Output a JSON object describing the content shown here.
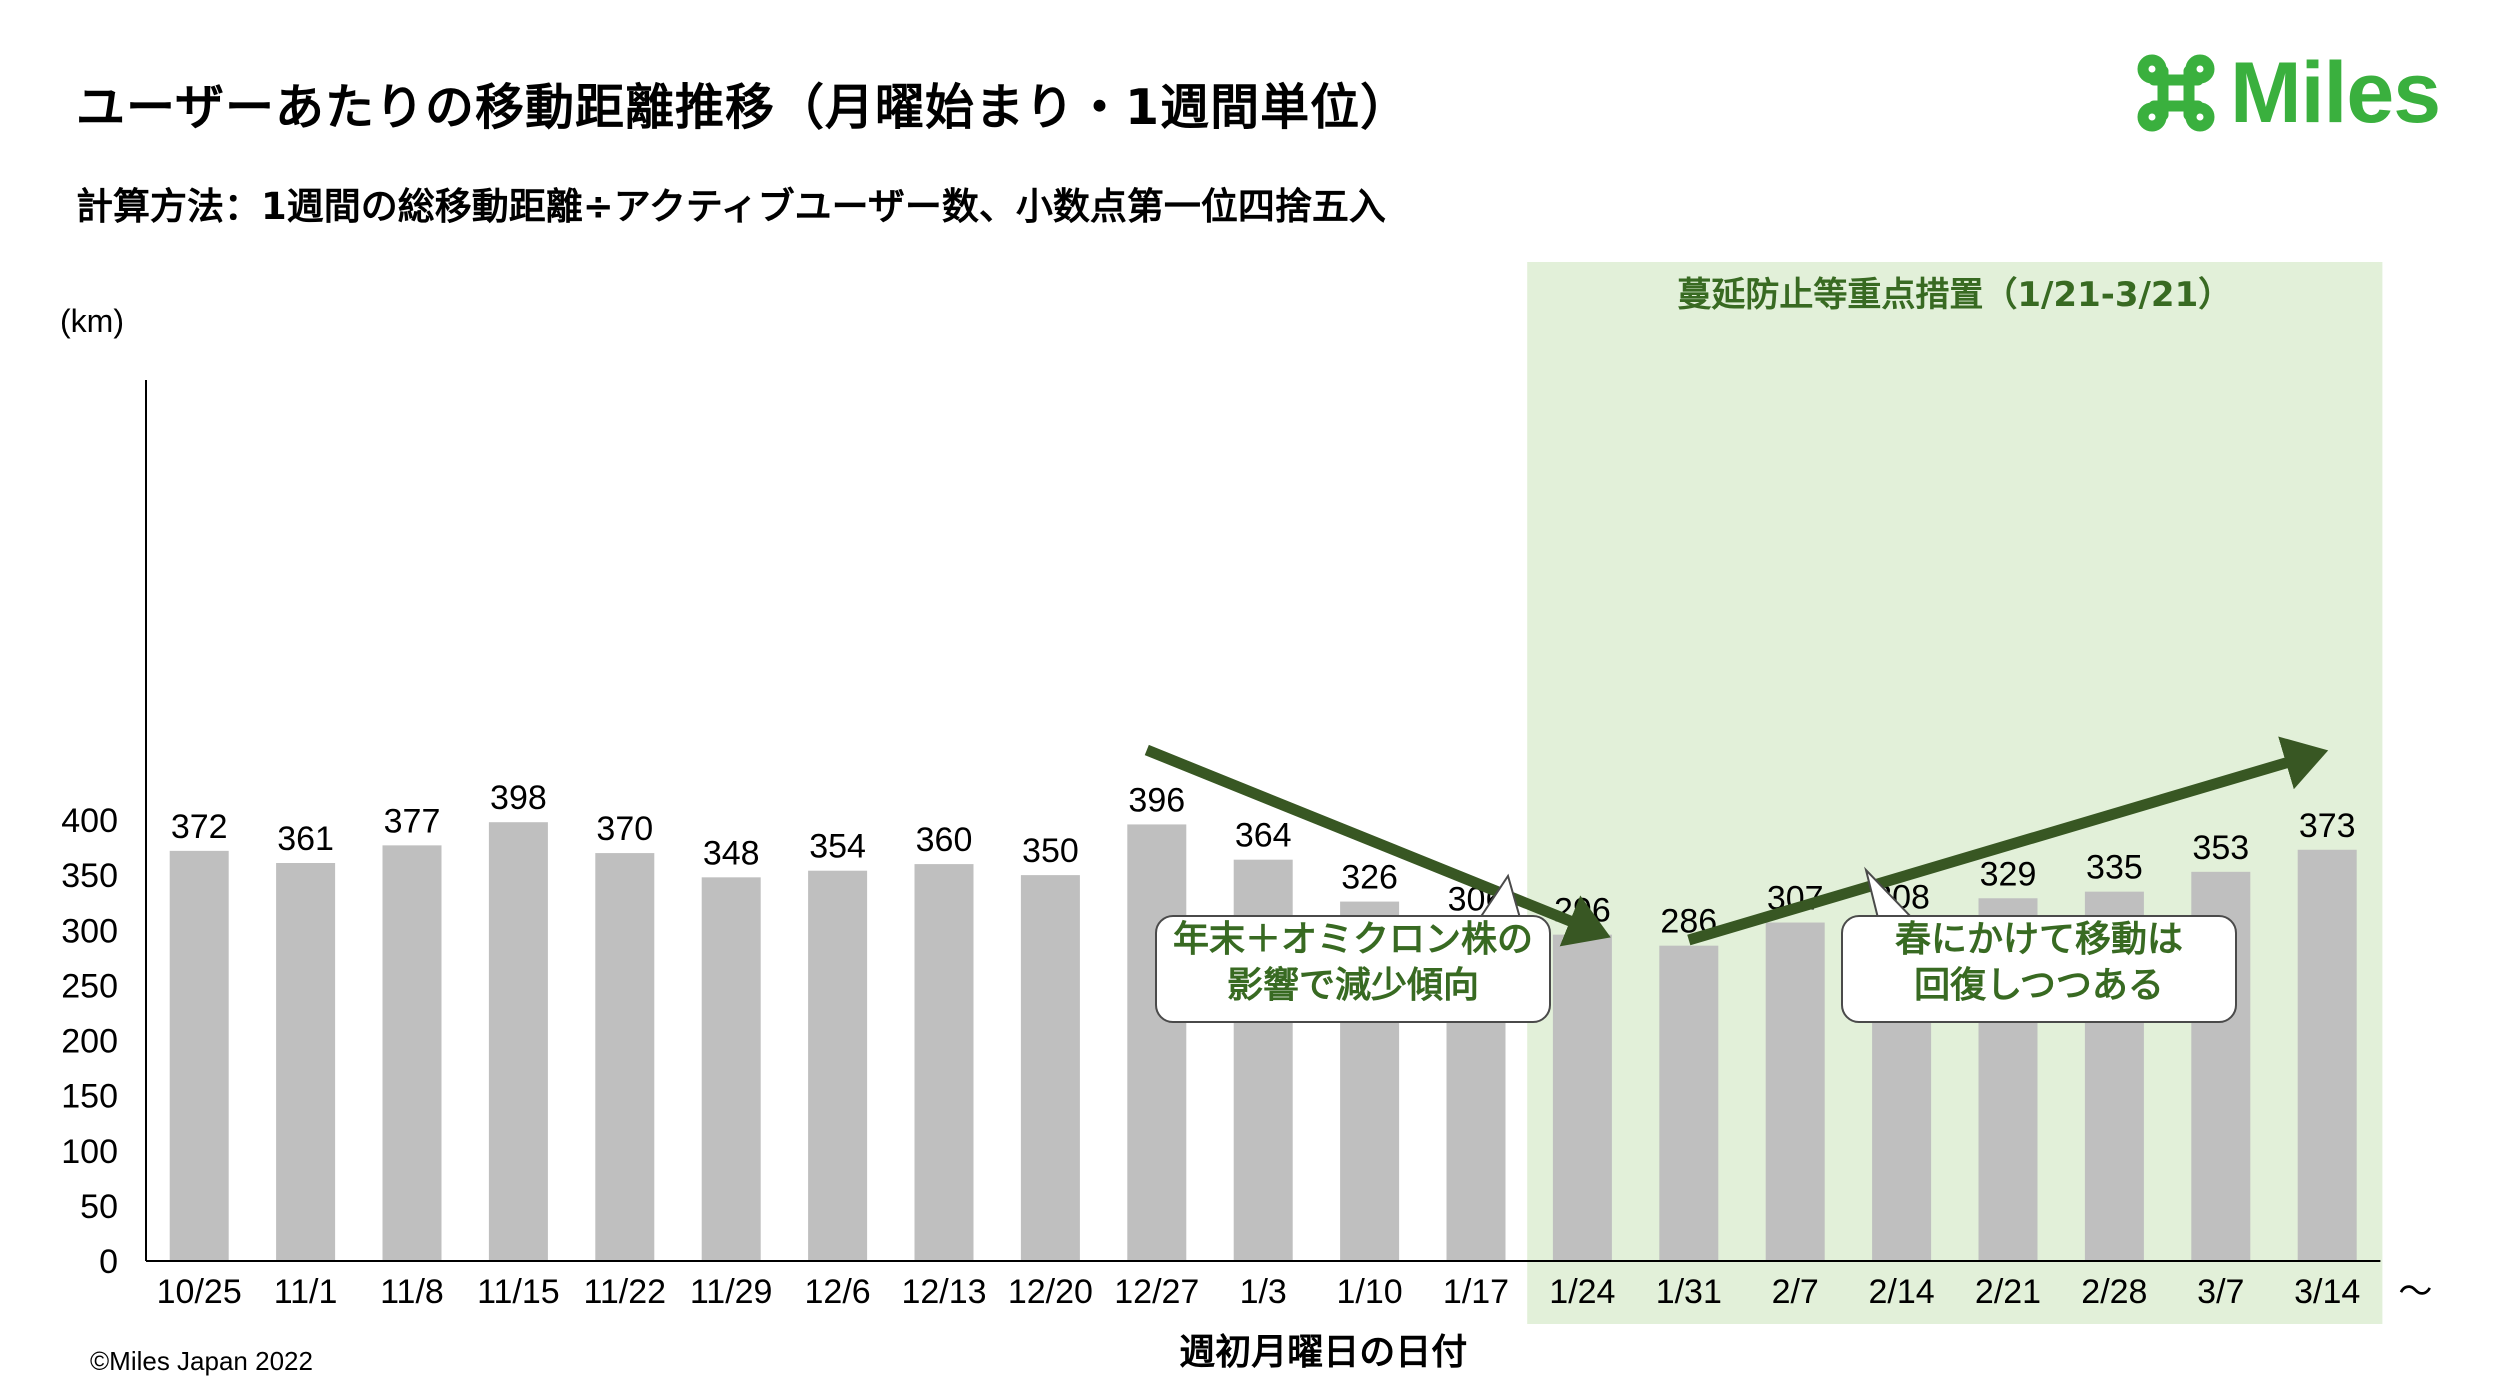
{
  "header": {
    "title": "ユーザーあたりの移動距離推移（月曜始まり・1週間単位）",
    "subtitle": "計算方法：1週間の総移動距離÷アクティブユーザー数、小数点第一位四捨五入"
  },
  "logo": {
    "text": "Miles",
    "icon": "command-icon",
    "color": "#3ab03e"
  },
  "footer": {
    "copyright": "©Miles Japan 2022"
  },
  "colors": {
    "bar": "#bfbfbf",
    "highlight_band": "#e2f0d9",
    "arrow": "#385723",
    "callout_text": "#386a22"
  },
  "chart_data": {
    "type": "bar",
    "ylabel": "(km)",
    "xlabel": "週初月曜日の日付",
    "ylim": [
      0,
      400
    ],
    "yticks": [
      0,
      50,
      100,
      150,
      200,
      250,
      300,
      350,
      400
    ],
    "categories": [
      "10/25",
      "11/1",
      "11/8",
      "11/15",
      "11/22",
      "11/29",
      "12/6",
      "12/13",
      "12/20",
      "12/27",
      "1/3",
      "1/10",
      "1/17",
      "1/24",
      "1/31",
      "2/7",
      "2/14",
      "2/21",
      "2/28",
      "3/7",
      "3/14"
    ],
    "values": [
      372,
      361,
      377,
      398,
      370,
      348,
      354,
      360,
      350,
      396,
      364,
      326,
      306,
      296,
      286,
      307,
      308,
      329,
      335,
      353,
      373
    ],
    "grid": false,
    "axis_end_mark": "〜",
    "highlight": {
      "label": "蔓延防止等重点措置（1/21-3/21）",
      "from": "1/24",
      "to": "3/14"
    },
    "annotations": [
      {
        "lines": [
          "年末＋オミクロン株の",
          "影響で減少傾向"
        ],
        "trend": "down"
      },
      {
        "lines": [
          "春にかけて移動は",
          "回復しつつある"
        ],
        "trend": "up"
      }
    ]
  }
}
